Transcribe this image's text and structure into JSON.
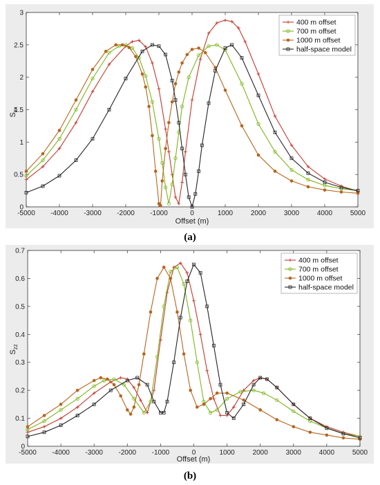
{
  "figure": {
    "caption_a": "(a)",
    "caption_b": "(b)"
  },
  "chart_data": [
    {
      "type": "line",
      "panel": "a",
      "xlabel": "Offset (m)",
      "ylabel": "S_zx",
      "ylabel_main": "S",
      "ylabel_sub": "zx",
      "xlim": [
        -5000,
        5000
      ],
      "ylim": [
        0,
        3
      ],
      "xticks": [
        -5000,
        -4000,
        -3000,
        -2000,
        -1000,
        0,
        1000,
        2000,
        3000,
        4000,
        5000
      ],
      "yticks": [
        0,
        0.5,
        1,
        1.5,
        2,
        2.5,
        3
      ],
      "ytick_labels": [
        "0",
        "0.5",
        "1",
        "1.5",
        "2",
        "2.5",
        "3"
      ],
      "grid": false,
      "legend_position": "top-right",
      "colors": {
        "400": "#c0392b",
        "700": "#7cb518",
        "1000": "#b5651d",
        "half": "#222222",
        "bg": "#ececec"
      },
      "series": [
        {
          "name": "400 m offset",
          "color": "#c0392b",
          "marker": "plus",
          "x": [
            -5000,
            -4500,
            -4000,
            -3500,
            -3000,
            -2500,
            -2000,
            -1800,
            -1600,
            -1400,
            -1200,
            -1000,
            -800,
            -700,
            -600,
            -500,
            -400,
            -300,
            -200,
            0,
            250,
            500,
            750,
            1000,
            1200,
            1400,
            1600,
            2000,
            2500,
            3000,
            3500,
            4000,
            4500,
            5000
          ],
          "y": [
            0.42,
            0.62,
            0.9,
            1.3,
            1.78,
            2.2,
            2.48,
            2.55,
            2.57,
            2.47,
            2.22,
            1.82,
            1.2,
            0.85,
            0.5,
            0.15,
            0.05,
            0.38,
            0.85,
            1.65,
            2.28,
            2.68,
            2.84,
            2.88,
            2.86,
            2.76,
            2.55,
            2.05,
            1.4,
            0.95,
            0.62,
            0.43,
            0.32,
            0.24
          ]
        },
        {
          "name": "700 m offset",
          "color": "#7cb518",
          "marker": "circle",
          "x": [
            -5000,
            -4500,
            -4000,
            -3500,
            -3000,
            -2500,
            -2200,
            -2000,
            -1800,
            -1600,
            -1400,
            -1200,
            -1000,
            -900,
            -800,
            -700,
            -600,
            -500,
            -400,
            -300,
            -100,
            200,
            500,
            750,
            1000,
            1500,
            2000,
            2500,
            3000,
            3500,
            4000,
            4500,
            5000
          ],
          "y": [
            0.48,
            0.72,
            1.05,
            1.5,
            1.98,
            2.38,
            2.48,
            2.5,
            2.45,
            2.3,
            2.02,
            1.62,
            1.05,
            0.68,
            0.3,
            0.05,
            0.35,
            0.75,
            1.15,
            1.55,
            2.0,
            2.34,
            2.48,
            2.5,
            2.42,
            1.9,
            1.28,
            0.85,
            0.57,
            0.42,
            0.33,
            0.28,
            0.25
          ]
        },
        {
          "name": "1000 m offset",
          "color": "#b5651d",
          "marker": "dot",
          "x": [
            -5000,
            -4500,
            -4000,
            -3500,
            -3000,
            -2600,
            -2300,
            -2100,
            -1900,
            -1700,
            -1500,
            -1400,
            -1300,
            -1200,
            -1100,
            -1000,
            -950,
            -900,
            -800,
            -700,
            -600,
            -500,
            -400,
            -300,
            -150,
            0,
            200,
            400,
            700,
            1000,
            1500,
            2000,
            2500,
            3000,
            3500,
            4000,
            4500,
            5000
          ],
          "y": [
            0.55,
            0.82,
            1.18,
            1.65,
            2.12,
            2.4,
            2.5,
            2.5,
            2.46,
            2.32,
            2.05,
            1.85,
            1.55,
            1.1,
            0.55,
            0.05,
            0.02,
            0.4,
            0.9,
            1.3,
            1.62,
            1.9,
            2.08,
            2.22,
            2.35,
            2.43,
            2.45,
            2.38,
            2.15,
            1.8,
            1.25,
            0.8,
            0.55,
            0.4,
            0.31,
            0.26,
            0.23,
            0.21
          ]
        },
        {
          "name": "half-space model",
          "color": "#222222",
          "marker": "square",
          "x": [
            -5000,
            -4500,
            -4000,
            -3500,
            -3000,
            -2500,
            -2000,
            -1500,
            -1200,
            -1000,
            -800,
            -600,
            -500,
            -400,
            -300,
            -200,
            -100,
            0,
            100,
            200,
            300,
            500,
            700,
            1000,
            1200,
            1500,
            2000,
            2500,
            3000,
            3500,
            4000,
            4500,
            5000
          ],
          "y": [
            0.22,
            0.32,
            0.48,
            0.72,
            1.05,
            1.5,
            1.98,
            2.4,
            2.5,
            2.48,
            2.35,
            1.95,
            1.65,
            1.3,
            0.9,
            0.5,
            0.15,
            0.0,
            0.2,
            0.55,
            0.95,
            1.6,
            2.1,
            2.45,
            2.5,
            2.3,
            1.72,
            1.15,
            0.75,
            0.52,
            0.38,
            0.3,
            0.25
          ]
        }
      ]
    },
    {
      "type": "line",
      "panel": "b",
      "xlabel": "Offset (m)",
      "ylabel": "S_zz",
      "ylabel_main": "S",
      "ylabel_sub": "zz",
      "xlim": [
        -5000,
        5000
      ],
      "ylim": [
        0,
        0.7
      ],
      "xticks": [
        -5000,
        -4000,
        -3000,
        -2000,
        -1000,
        0,
        1000,
        2000,
        3000,
        4000,
        5000
      ],
      "yticks": [
        0,
        0.1,
        0.2,
        0.3,
        0.4,
        0.5,
        0.6,
        0.7
      ],
      "ytick_labels": [
        "0",
        "0.1",
        "0.2",
        "0.3",
        "0.4",
        "0.5",
        "0.6",
        "0.7"
      ],
      "grid": false,
      "legend_position": "top-right",
      "series": [
        {
          "name": "400 m offset",
          "color": "#c0392b",
          "marker": "plus",
          "x": [
            -5000,
            -4500,
            -4000,
            -3500,
            -3000,
            -2500,
            -2200,
            -2000,
            -1800,
            -1600,
            -1400,
            -1200,
            -1000,
            -800,
            -600,
            -400,
            -200,
            0,
            200,
            400,
            600,
            800,
            1000,
            1200,
            1500,
            1800,
            2000,
            2200,
            2500,
            3000,
            3500,
            4000,
            4500,
            5000
          ],
          "y": [
            0.05,
            0.07,
            0.1,
            0.14,
            0.19,
            0.23,
            0.245,
            0.24,
            0.21,
            0.165,
            0.12,
            0.2,
            0.38,
            0.55,
            0.64,
            0.655,
            0.62,
            0.52,
            0.4,
            0.27,
            0.17,
            0.11,
            0.11,
            0.14,
            0.2,
            0.235,
            0.245,
            0.24,
            0.21,
            0.15,
            0.1,
            0.07,
            0.05,
            0.035
          ]
        },
        {
          "name": "700 m offset",
          "color": "#7cb518",
          "marker": "circle",
          "x": [
            -5000,
            -4500,
            -4000,
            -3500,
            -3000,
            -2700,
            -2400,
            -2100,
            -1800,
            -1500,
            -1300,
            -1100,
            -900,
            -700,
            -500,
            -300,
            -100,
            100,
            300,
            500,
            700,
            1000,
            1400,
            1800,
            2100,
            2500,
            3000,
            3500,
            4000,
            4500,
            5000
          ],
          "y": [
            0.06,
            0.09,
            0.13,
            0.17,
            0.215,
            0.235,
            0.24,
            0.22,
            0.17,
            0.12,
            0.16,
            0.32,
            0.5,
            0.625,
            0.64,
            0.58,
            0.45,
            0.3,
            0.16,
            0.12,
            0.13,
            0.17,
            0.195,
            0.2,
            0.19,
            0.165,
            0.125,
            0.09,
            0.065,
            0.045,
            0.035
          ]
        },
        {
          "name": "1000 m offset",
          "color": "#b5651d",
          "marker": "dot",
          "x": [
            -5000,
            -4500,
            -4000,
            -3500,
            -3000,
            -2800,
            -2600,
            -2400,
            -2200,
            -2000,
            -1900,
            -1800,
            -1650,
            -1500,
            -1300,
            -1100,
            -900,
            -700,
            -500,
            -300,
            -100,
            100,
            300,
            500,
            700,
            1000,
            1500,
            2000,
            2500,
            3000,
            3500,
            4000,
            4500,
            5000
          ],
          "y": [
            0.07,
            0.11,
            0.15,
            0.2,
            0.235,
            0.245,
            0.24,
            0.22,
            0.18,
            0.13,
            0.115,
            0.14,
            0.22,
            0.33,
            0.48,
            0.6,
            0.64,
            0.6,
            0.48,
            0.33,
            0.2,
            0.14,
            0.15,
            0.17,
            0.19,
            0.19,
            0.165,
            0.13,
            0.095,
            0.07,
            0.05,
            0.04,
            0.03,
            0.025
          ]
        },
        {
          "name": "half-space model",
          "color": "#222222",
          "marker": "square",
          "x": [
            -5000,
            -4500,
            -4000,
            -3500,
            -3000,
            -2500,
            -2000,
            -1700,
            -1400,
            -1200,
            -1000,
            -900,
            -800,
            -600,
            -400,
            -200,
            0,
            200,
            400,
            600,
            800,
            1000,
            1200,
            1500,
            1800,
            2000,
            2200,
            2500,
            3000,
            3500,
            4000,
            4500,
            5000
          ],
          "y": [
            0.035,
            0.05,
            0.075,
            0.11,
            0.15,
            0.2,
            0.235,
            0.245,
            0.22,
            0.16,
            0.12,
            0.12,
            0.16,
            0.3,
            0.46,
            0.59,
            0.65,
            0.62,
            0.5,
            0.36,
            0.22,
            0.12,
            0.1,
            0.15,
            0.22,
            0.245,
            0.24,
            0.21,
            0.15,
            0.1,
            0.065,
            0.045,
            0.03
          ]
        }
      ]
    }
  ]
}
